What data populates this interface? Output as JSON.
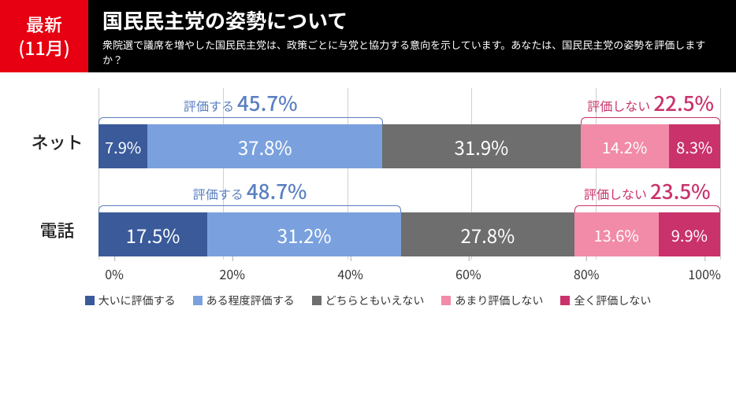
{
  "badge": {
    "line1": "最新",
    "line2": "(11月)"
  },
  "title": "国民民主党の姿勢について",
  "subtitle": "衆院選で議席を増やした国民民主党は、政策ごとに与党と協力する意向を示しています。あなたは、国民民主党の姿勢を評価しますか？",
  "colors": {
    "c1": "#3a5a9a",
    "c2": "#7aa1de",
    "c3": "#6e6e6e",
    "c4": "#f18ba8",
    "c5": "#c9326b",
    "bracket_pos": "#5a7fc0",
    "bracket_neg": "#c9326b"
  },
  "rows": [
    {
      "label": "ネット",
      "segments": [
        {
          "value": 7.9,
          "label": "7.9%",
          "color_key": "c1",
          "small": true
        },
        {
          "value": 37.8,
          "label": "37.8%",
          "color_key": "c2"
        },
        {
          "value": 31.9,
          "label": "31.9%",
          "color_key": "c3"
        },
        {
          "value": 14.2,
          "label": "14.2%",
          "color_key": "c4",
          "small": true
        },
        {
          "value": 8.3,
          "label": "8.3%",
          "color_key": "c5",
          "small": true
        }
      ],
      "brackets": {
        "pos": {
          "text": "評価する",
          "pct": "45.7%",
          "start": 0,
          "end": 45.7
        },
        "neg": {
          "text": "評価しない",
          "pct": "22.5%",
          "start": 77.6,
          "end": 100
        }
      }
    },
    {
      "label": "電話",
      "segments": [
        {
          "value": 17.5,
          "label": "17.5%",
          "color_key": "c1"
        },
        {
          "value": 31.2,
          "label": "31.2%",
          "color_key": "c2"
        },
        {
          "value": 27.8,
          "label": "27.8%",
          "color_key": "c3"
        },
        {
          "value": 13.6,
          "label": "13.6%",
          "color_key": "c4",
          "small": true
        },
        {
          "value": 9.9,
          "label": "9.9%",
          "color_key": "c5",
          "small": true
        }
      ],
      "brackets": {
        "pos": {
          "text": "評価する",
          "pct": "48.7%",
          "start": 0,
          "end": 48.7
        },
        "neg": {
          "text": "評価しない",
          "pct": "23.5%",
          "start": 76.5,
          "end": 100
        }
      }
    }
  ],
  "axis": {
    "ticks": [
      0,
      20,
      40,
      60,
      80,
      100
    ]
  },
  "legend": [
    {
      "label": "大いに評価する",
      "color_key": "c1"
    },
    {
      "label": "ある程度評価する",
      "color_key": "c2"
    },
    {
      "label": "どちらともいえない",
      "color_key": "c3"
    },
    {
      "label": "あまり評価しない",
      "color_key": "c4"
    },
    {
      "label": "全く評価しない",
      "color_key": "c5"
    }
  ]
}
